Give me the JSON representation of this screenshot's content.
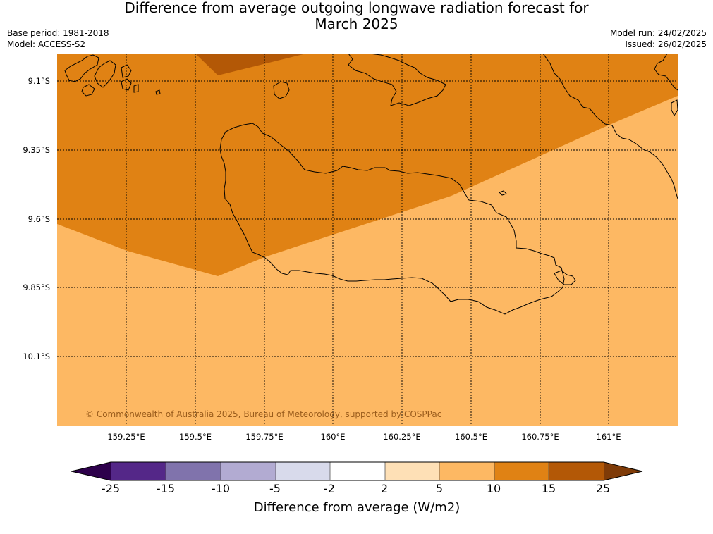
{
  "header": {
    "title_line1": "Difference from average outgoing longwave radiation forecast for",
    "title_line2": "March 2025",
    "base_period": "Base period: 1981-2018",
    "model": "Model: ACCESS-S2",
    "model_run": "Model run: 24/02/2025",
    "issued": "Issued: 26/02/2025"
  },
  "map": {
    "lat_labels": [
      "9.1°S",
      "9.35°S",
      "9.6°S",
      "9.85°S",
      "10.1°S"
    ],
    "lon_labels": [
      "159.25°E",
      "159.5°E",
      "159.75°E",
      "160°E",
      "160.25°E",
      "160.5°E",
      "160.75°E",
      "161°E"
    ],
    "copyright": "© Commonwealth of Australia 2025, Bureau of Meteorology, supported by COSPPac",
    "field_colors": {
      "10_to_15": "#e08214",
      "15_to_25": "#b35806",
      "5_to_10": "#fdb863"
    }
  },
  "colorbar": {
    "title": "Difference from average (W/m2)",
    "tick_labels": [
      "-25",
      "-15",
      "-10",
      "-5",
      "-2",
      "2",
      "5",
      "10",
      "15",
      "25"
    ],
    "colors": [
      "#2d004b",
      "#542788",
      "#8073ac",
      "#b2abd2",
      "#d8daeb",
      "#ffffff",
      "#fee0b6",
      "#fdb863",
      "#e08214",
      "#b35806",
      "#7f3b08"
    ]
  }
}
